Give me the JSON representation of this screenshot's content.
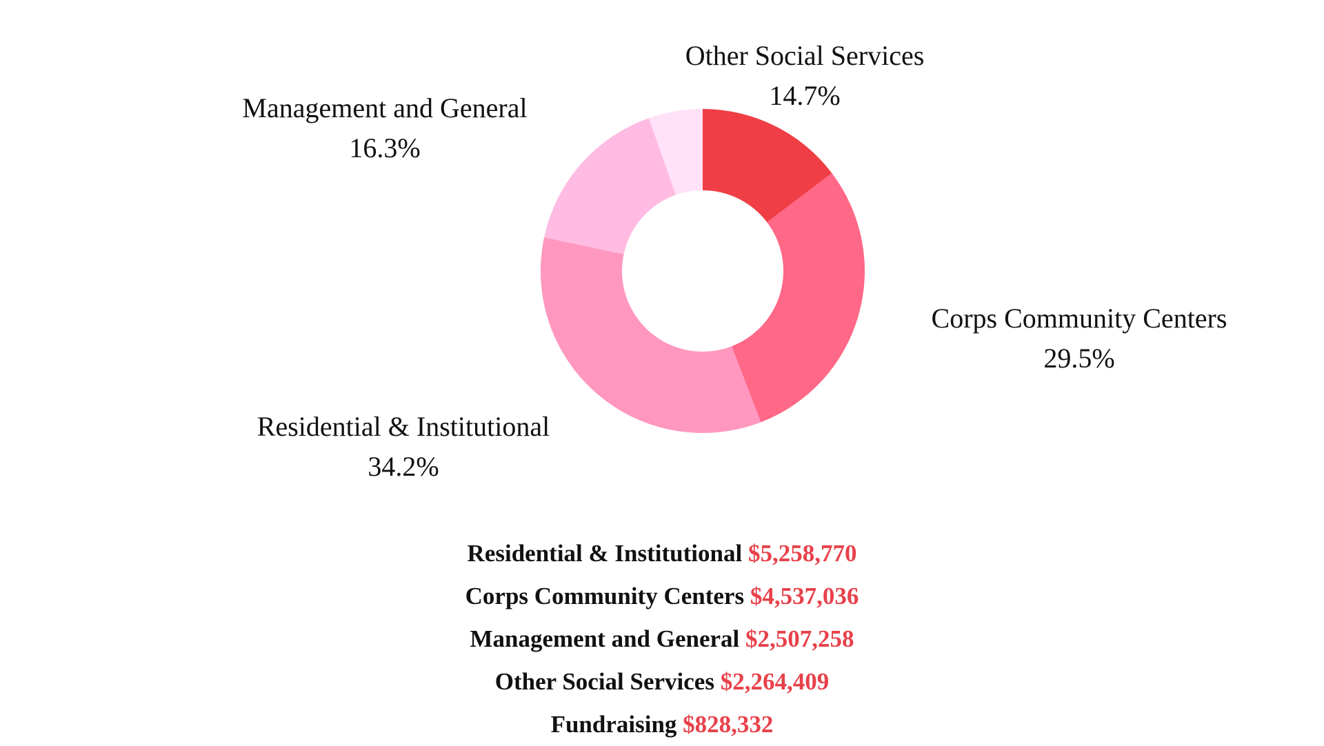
{
  "chart_data": {
    "type": "pie",
    "variant": "donut",
    "title": "",
    "slices": [
      {
        "label": "Other Social Services",
        "percent": 14.7,
        "percent_label": "14.7%",
        "color": "#ef3e45"
      },
      {
        "label": "Corps Community Centers",
        "percent": 29.5,
        "percent_label": "29.5%",
        "color": "#ff6886"
      },
      {
        "label": "Residential & Institutional",
        "percent": 34.2,
        "percent_label": "34.2%",
        "color": "#ff97bf"
      },
      {
        "label": "Management and General",
        "percent": 16.3,
        "percent_label": "16.3%",
        "color": "#ffbbe2"
      },
      {
        "label": "Fundraising",
        "percent": 5.4,
        "percent_label": "",
        "color": "#ffe1f8"
      }
    ],
    "legend": [
      {
        "name": "Residential & Institutional",
        "amount": "$5,258,770"
      },
      {
        "name": "Corps Community Centers",
        "amount": "$4,537,036"
      },
      {
        "name": "Management and General",
        "amount": "$2,507,258"
      },
      {
        "name": "Other Social Services",
        "amount": "$2,264,409"
      },
      {
        "name": "Fundraising",
        "amount": "$828,332"
      }
    ],
    "amount_color": "#e8414a"
  }
}
